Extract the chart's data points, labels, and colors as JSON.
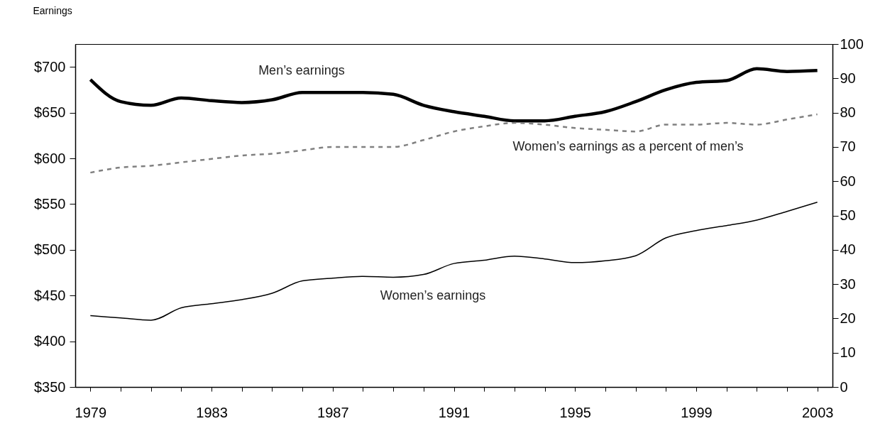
{
  "chart_data": {
    "type": "line",
    "ylabel": "Earnings",
    "x": [
      1979,
      1980,
      1981,
      1982,
      1983,
      1984,
      1985,
      1986,
      1987,
      1988,
      1989,
      1990,
      1991,
      1992,
      1993,
      1994,
      1995,
      1996,
      1997,
      1998,
      1999,
      2000,
      2001,
      2002,
      2003
    ],
    "xlim": [
      1978.5,
      2003.5
    ],
    "xticks": [
      1979,
      {
        "value": 1980,
        "label": null
      },
      {
        "value": 1981,
        "label": null
      },
      {
        "value": 1982,
        "label": null
      },
      1983,
      {
        "value": 1984,
        "label": null
      },
      {
        "value": 1985,
        "label": null
      },
      {
        "value": 1986,
        "label": null
      },
      1987,
      {
        "value": 1988,
        "label": null
      },
      {
        "value": 1989,
        "label": null
      },
      {
        "value": 1990,
        "label": null
      },
      1991,
      {
        "value": 1992,
        "label": null
      },
      {
        "value": 1993,
        "label": null
      },
      {
        "value": 1994,
        "label": null
      },
      1995,
      {
        "value": 1996,
        "label": null
      },
      {
        "value": 1997,
        "label": null
      },
      {
        "value": 1998,
        "label": null
      },
      1999,
      {
        "value": 2000,
        "label": null
      },
      {
        "value": 2001,
        "label": null
      },
      {
        "value": 2002,
        "label": null
      },
      2003
    ],
    "ylim": [
      350,
      725
    ],
    "yticks": [
      {
        "value": 350,
        "label": "$350"
      },
      {
        "value": 400,
        "label": "$400"
      },
      {
        "value": 450,
        "label": "$450"
      },
      {
        "value": 500,
        "label": "$500"
      },
      {
        "value": 550,
        "label": "$550"
      },
      {
        "value": 600,
        "label": "$600"
      },
      {
        "value": 650,
        "label": "$650"
      },
      {
        "value": 700,
        "label": "$700"
      }
    ],
    "y2lim": [
      0,
      100
    ],
    "y2ticks": [
      0,
      10,
      20,
      30,
      40,
      50,
      60,
      70,
      80,
      90,
      100
    ],
    "grid": false,
    "legend": false,
    "series": [
      {
        "name": "Men’s earnings",
        "color": "#000000",
        "line_style": "solid",
        "values": [
          686,
          662,
          658,
          666,
          663,
          661,
          664,
          672,
          672,
          672,
          670,
          658,
          651,
          646,
          641,
          641,
          646,
          651,
          662,
          675,
          683,
          685,
          698,
          695,
          696
        ]
      },
      {
        "name": "Women’s earnings as a percent of men’s",
        "color": "#808080",
        "line_style": "dashed",
        "axis": "y2",
        "values": [
          62.5,
          64,
          64.5,
          65.5,
          66.5,
          67.5,
          68,
          69,
          70,
          70,
          70,
          72,
          74.5,
          76,
          77,
          76.5,
          75.5,
          75,
          74.5,
          76.5,
          76.5,
          77,
          76.5,
          78,
          79.5
        ]
      },
      {
        "name": "Women’s earnings",
        "color": "#000000",
        "line_style": "solid",
        "values": [
          428,
          425.5,
          423,
          436.5,
          441,
          445.5,
          452.5,
          466,
          469,
          471,
          470,
          473,
          485,
          488.5,
          493,
          490,
          486,
          488,
          493.5,
          513,
          521,
          526.5,
          532.5,
          542,
          552
        ]
      }
    ]
  }
}
